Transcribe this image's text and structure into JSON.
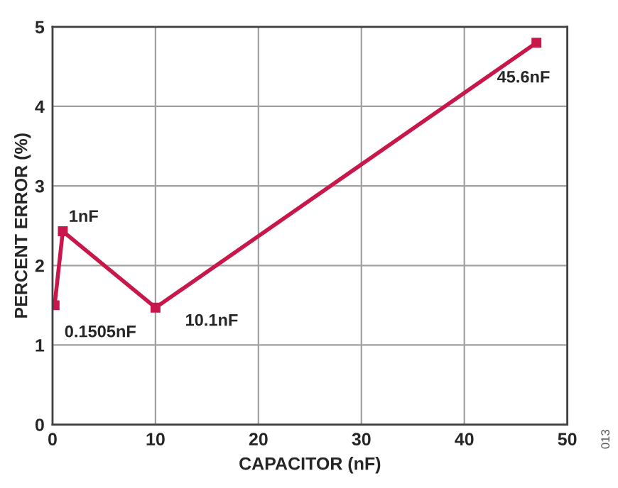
{
  "chart_data": {
    "type": "line",
    "xlabel": "CAPACITOR (nF)",
    "ylabel": "PERCENT ERROR (%)",
    "x": [
      0.2,
      1,
      10,
      47
    ],
    "series": [
      {
        "color": "#c8174a",
        "values": [
          1.5,
          2.43,
          1.47,
          4.8
        ]
      }
    ],
    "xlim": [
      0,
      50
    ],
    "xticks": [
      0,
      10,
      20,
      30,
      40,
      50
    ],
    "ylim": [
      0,
      5
    ],
    "yticks": [
      0,
      1,
      2,
      3,
      4,
      5
    ],
    "grid": true,
    "marker": "square",
    "line_style": "solid",
    "annotations": [
      {
        "text": "0.1505nF",
        "x": 0.2,
        "y": 1.5
      },
      {
        "text": "1nF",
        "x": 1,
        "y": 2.43
      },
      {
        "text": "10.1nF",
        "x": 10,
        "y": 1.47
      },
      {
        "text": "45.6nF",
        "x": 47,
        "y": 4.8
      },
      "013"
    ]
  }
}
